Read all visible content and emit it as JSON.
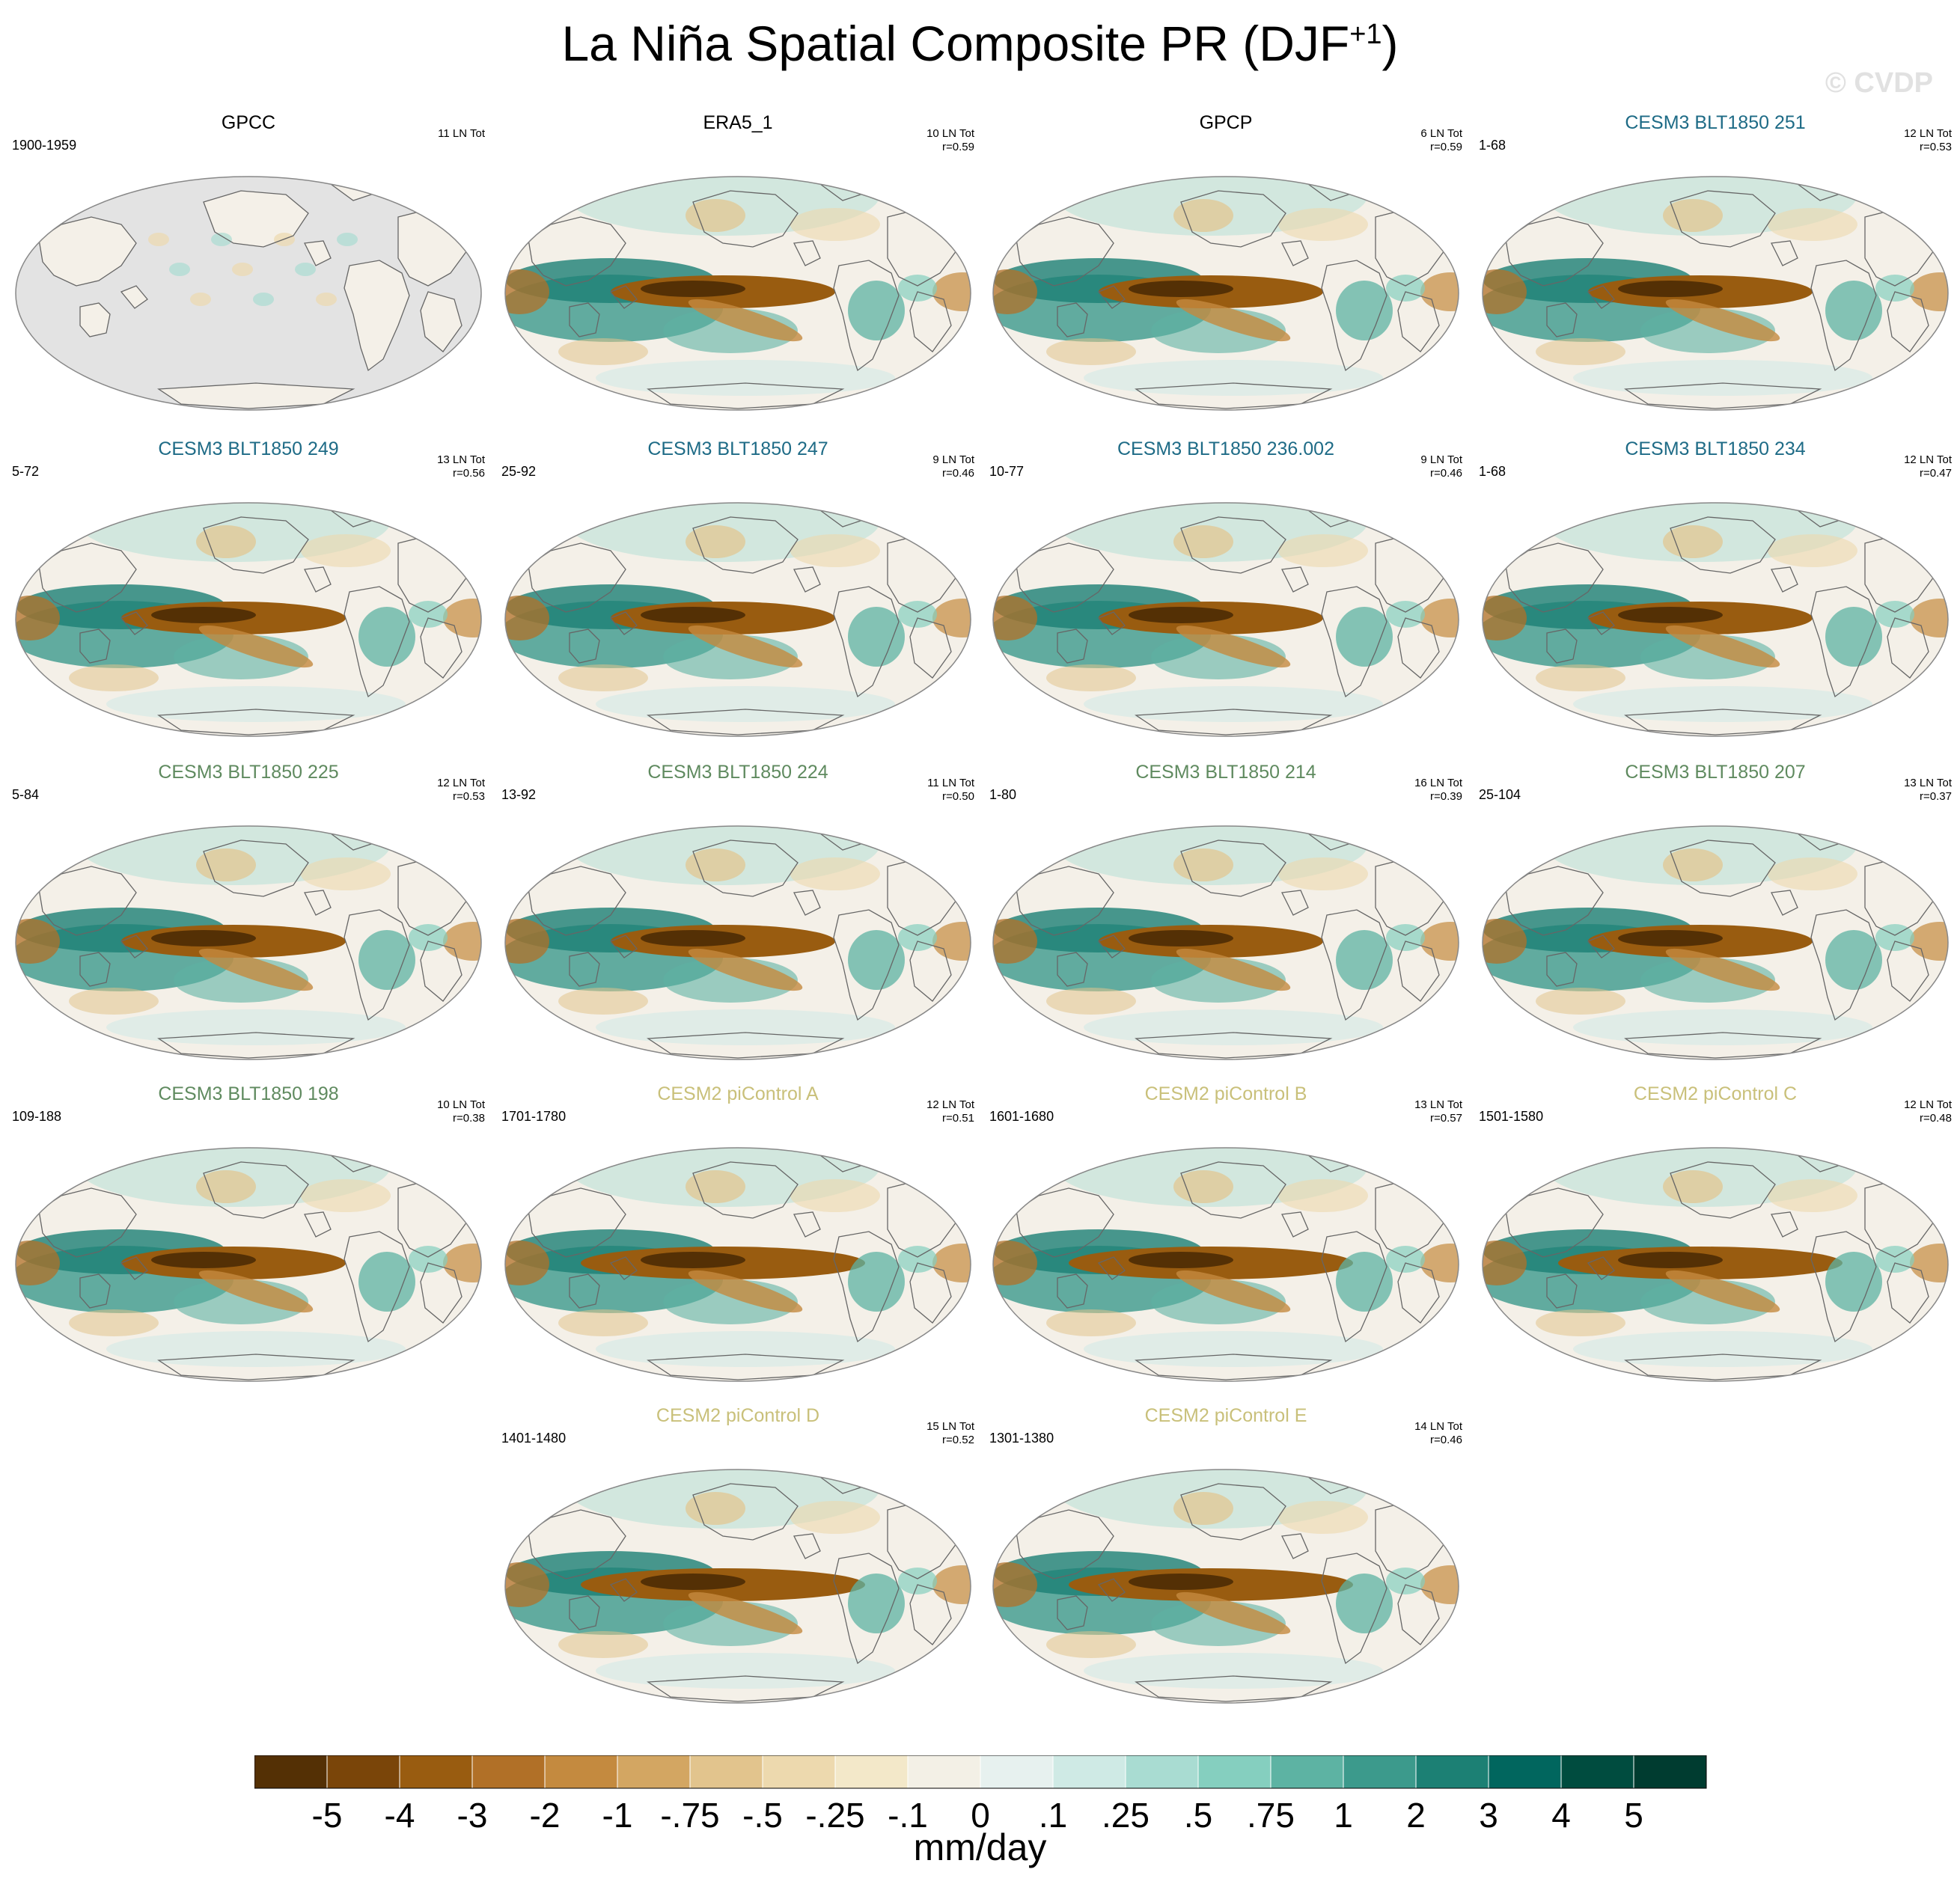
{
  "title": "La Niña Spatial Composite PR (DJF",
  "title_sup": "+1",
  "title_close": ")",
  "watermark": "© CVDP",
  "colors": {
    "obs_title": "#000000",
    "cesm3_a": "#1e6b86",
    "cesm3_b": "#5f8a5f",
    "cesm2": "#c9c07a",
    "missing": "#e3e3e3",
    "ocean": "#f4f0e8",
    "coast": "#666666"
  },
  "chart_data": {
    "type": "heatmap",
    "variable": "PR",
    "season": "DJF+1",
    "units": "mm/day",
    "colorbar": {
      "labels": [
        "-5",
        "-4",
        "-3",
        "-2",
        "-1",
        "-.75",
        "-.5",
        "-.25",
        "-.1",
        "0",
        ".1",
        ".25",
        ".5",
        ".75",
        "1",
        "2",
        "3",
        "4",
        "5"
      ],
      "colors": [
        "#543005",
        "#7a4509",
        "#995c10",
        "#b17027",
        "#c48a3f",
        "#d3a662",
        "#e2c48d",
        "#edd9ae",
        "#f3e8c9",
        "#f3f0e6",
        "#e7f1ef",
        "#cfeae5",
        "#a9dcd2",
        "#85cfbf",
        "#5db3a3",
        "#3c9a8c",
        "#1c8074",
        "#01665e",
        "#004c3f",
        "#003c30"
      ],
      "unit_label": "mm/day"
    },
    "panels": [
      {
        "title": "GPCC",
        "years": "1900-1959",
        "count": "11 LN Tot",
        "r": "",
        "group": "obs",
        "land_only": true
      },
      {
        "title": "ERA5_1",
        "years": "",
        "count": "10 LN Tot",
        "r": "r=0.59",
        "group": "obs",
        "land_only": false
      },
      {
        "title": "GPCP",
        "years": "",
        "count": "6 LN Tot",
        "r": "r=0.59",
        "group": "obs",
        "land_only": false
      },
      {
        "title": "CESM3 BLT1850 251",
        "years": "1-68",
        "count": "12 LN Tot",
        "r": "r=0.53",
        "group": "cesm3_a",
        "land_only": false
      },
      {
        "title": "CESM3 BLT1850 249",
        "years": "5-72",
        "count": "13 LN Tot",
        "r": "r=0.56",
        "group": "cesm3_a",
        "land_only": false
      },
      {
        "title": "CESM3 BLT1850 247",
        "years": "25-92",
        "count": "9 LN Tot",
        "r": "r=0.46",
        "group": "cesm3_a",
        "land_only": false
      },
      {
        "title": "CESM3 BLT1850 236.002",
        "years": "10-77",
        "count": "9 LN Tot",
        "r": "r=0.46",
        "group": "cesm3_a",
        "land_only": false
      },
      {
        "title": "CESM3 BLT1850 234",
        "years": "1-68",
        "count": "12 LN Tot",
        "r": "r=0.47",
        "group": "cesm3_a",
        "land_only": false
      },
      {
        "title": "CESM3 BLT1850 225",
        "years": "5-84",
        "count": "12 LN Tot",
        "r": "r=0.53",
        "group": "cesm3_b",
        "land_only": false
      },
      {
        "title": "CESM3 BLT1850 224",
        "years": "13-92",
        "count": "11 LN Tot",
        "r": "r=0.50",
        "group": "cesm3_b",
        "land_only": false
      },
      {
        "title": "CESM3 BLT1850 214",
        "years": "1-80",
        "count": "16 LN Tot",
        "r": "r=0.39",
        "group": "cesm3_b",
        "land_only": false
      },
      {
        "title": "CESM3 BLT1850 207",
        "years": "25-104",
        "count": "13 LN Tot",
        "r": "r=0.37",
        "group": "cesm3_b",
        "land_only": false
      },
      {
        "title": "CESM3 BLT1850 198",
        "years": "109-188",
        "count": "10 LN Tot",
        "r": "r=0.38",
        "group": "cesm3_b",
        "land_only": false
      },
      {
        "title": "CESM2 piControl A",
        "years": "1701-1780",
        "count": "12 LN Tot",
        "r": "r=0.51",
        "group": "cesm2",
        "land_only": false
      },
      {
        "title": "CESM2 piControl B",
        "years": "1601-1680",
        "count": "13 LN Tot",
        "r": "r=0.57",
        "group": "cesm2",
        "land_only": false
      },
      {
        "title": "CESM2 piControl C",
        "years": "1501-1580",
        "count": "12 LN Tot",
        "r": "r=0.48",
        "group": "cesm2",
        "land_only": false
      },
      {
        "title": "CESM2 piControl D",
        "years": "1401-1480",
        "count": "15 LN Tot",
        "r": "r=0.52",
        "group": "cesm2",
        "land_only": false
      },
      {
        "title": "CESM2 piControl E",
        "years": "1301-1380",
        "count": "14 LN Tot",
        "r": "r=0.46",
        "group": "cesm2",
        "land_only": false
      }
    ]
  }
}
